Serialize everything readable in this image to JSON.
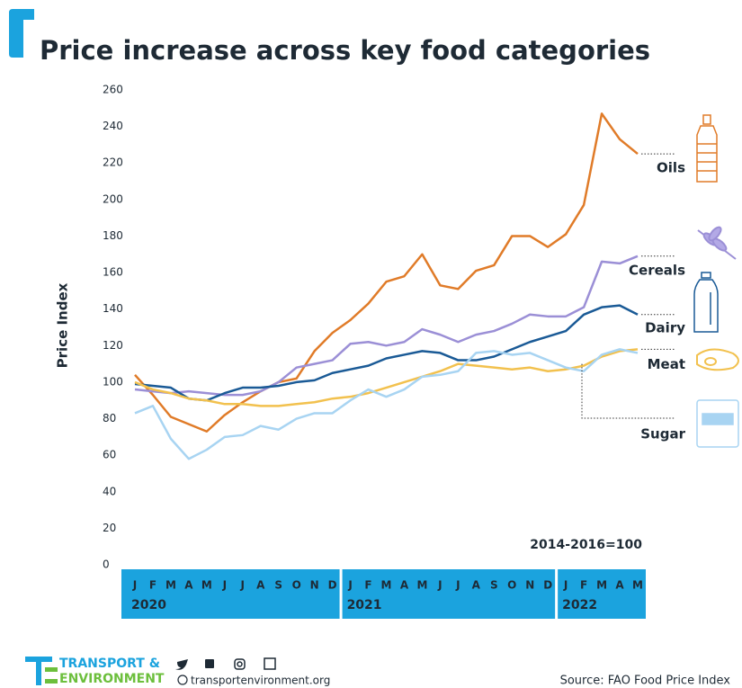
{
  "chart_data": {
    "type": "line",
    "title": "Price increase across key food categories",
    "y_label": "Price Index",
    "annotation": "2014-2016=100",
    "categories": [
      "J",
      "F",
      "M",
      "A",
      "M",
      "J",
      "J",
      "A",
      "S",
      "O",
      "N",
      "D",
      "J",
      "F",
      "M",
      "A",
      "M",
      "J",
      "J",
      "A",
      "S",
      "O",
      "N",
      "D",
      "J",
      "F",
      "M",
      "A",
      "M"
    ],
    "year_labels": [
      "2020",
      "2021",
      "2022"
    ],
    "ylim": [
      0,
      260
    ],
    "yticks": [
      0,
      20,
      40,
      60,
      80,
      100,
      120,
      140,
      160,
      180,
      200,
      220,
      240,
      260
    ],
    "grid": false,
    "series": [
      {
        "name": "Oils",
        "color": "#e07b28",
        "values": [
          104,
          93,
          81,
          77,
          73,
          82,
          89,
          95,
          100,
          102,
          117,
          127,
          134,
          143,
          155,
          158,
          170,
          153,
          151,
          161,
          164,
          180,
          180,
          174,
          181,
          197,
          247,
          233,
          225
        ]
      },
      {
        "name": "Cereals",
        "color": "#9b8fd6",
        "values": [
          96,
          95,
          94,
          95,
          94,
          93,
          93,
          95,
          100,
          108,
          110,
          112,
          121,
          122,
          120,
          122,
          129,
          126,
          122,
          126,
          128,
          132,
          137,
          136,
          136,
          141,
          166,
          165,
          169
        ]
      },
      {
        "name": "Dairy",
        "color": "#1a5a96",
        "values": [
          99,
          98,
          97,
          91,
          90,
          94,
          97,
          97,
          98,
          100,
          101,
          105,
          107,
          109,
          113,
          115,
          117,
          116,
          112,
          112,
          114,
          118,
          122,
          125,
          128,
          137,
          141,
          142,
          137
        ]
      },
      {
        "name": "Meat",
        "color": "#f2c14e",
        "values": [
          100,
          96,
          94,
          91,
          90,
          88,
          88,
          87,
          87,
          88,
          89,
          91,
          92,
          94,
          97,
          100,
          103,
          106,
          110,
          109,
          108,
          107,
          108,
          106,
          107,
          109,
          114,
          117,
          118
        ]
      },
      {
        "name": "Sugar",
        "color": "#a8d4f2",
        "values": [
          83,
          87,
          69,
          58,
          63,
          70,
          71,
          76,
          74,
          80,
          83,
          83,
          90,
          96,
          92,
          96,
          103,
          104,
          106,
          116,
          117,
          115,
          116,
          112,
          108,
          106,
          115,
          118,
          116
        ]
      }
    ]
  },
  "footer": {
    "org_line1": "TRANSPORT &",
    "org_line2": "ENVIRONMENT",
    "website": "transportenvironment.org",
    "source": "Source: FAO Food Price Index"
  }
}
